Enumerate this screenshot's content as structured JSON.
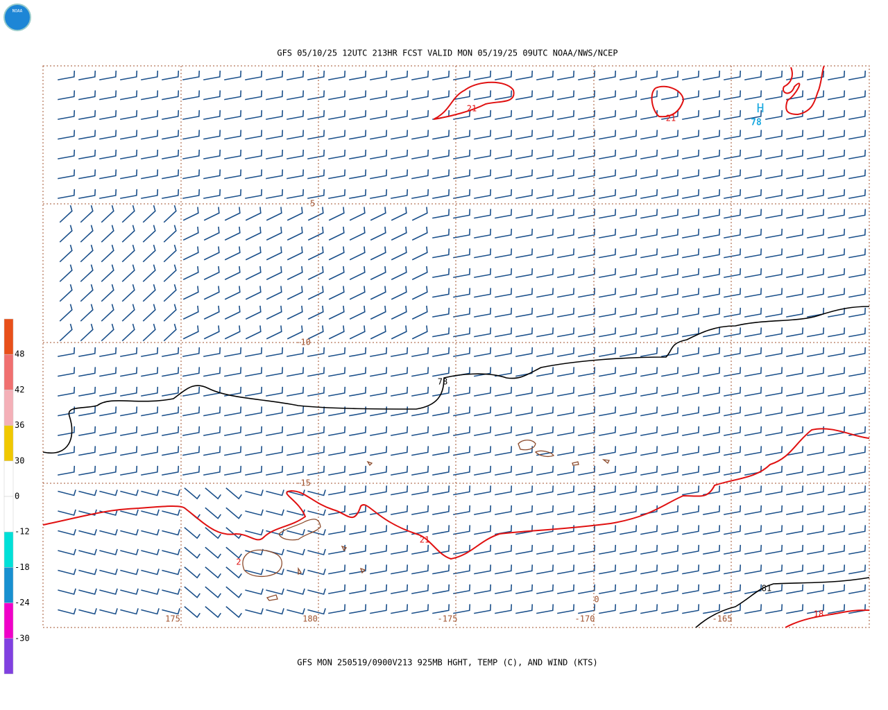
{
  "logo": {
    "text": "NOAA"
  },
  "header": {
    "title": "GFS 05/10/25 12UTC 213HR FCST VALID MON 05/19/25 09UTC NOAA/NWS/NCEP"
  },
  "footer": {
    "caption": "GFS MON 250519/0900V213 925MB HGHT, TEMP (C), AND WIND (KTS)"
  },
  "map": {
    "lat_labels": [
      "-5",
      "-10",
      "-15"
    ],
    "lon_labels": [
      "175",
      "180",
      "-175",
      "-170",
      "-165"
    ],
    "contour_labels": [
      "21",
      "21",
      "78",
      "21",
      "2",
      "0",
      "81",
      "18"
    ],
    "high": {
      "letter": "H",
      "value": "78"
    }
  },
  "colorbar": {
    "labels": [
      "48",
      "42",
      "36",
      "30",
      "0",
      "-12",
      "-18",
      "-24",
      "-30"
    ],
    "colors": [
      "#e8501a",
      "#f07070",
      "#f4b0b8",
      "#f0c800",
      "#ffffff",
      "#ffffff",
      "#00e0d8",
      "#1890d0",
      "#f000c8",
      "#8040e0"
    ]
  }
}
